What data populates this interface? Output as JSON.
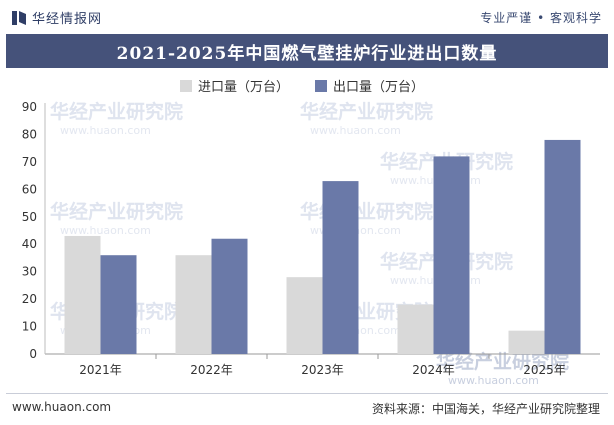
{
  "header": {
    "brand": "华经情报网",
    "slogan": "专业严谨 • 客观科学"
  },
  "title": "2021-2025年中国燃气壁挂炉行业进出口数量",
  "watermark": {
    "text": "华经产业研究院",
    "url": "www.huaon.com"
  },
  "footer": {
    "left": "www.huaon.com",
    "right": "资料来源：中国海关，华经产业研究院整理"
  },
  "colors": {
    "import": "#d9d9d9",
    "export": "#6a79a8",
    "title_bg": "#45527a",
    "brand": "#2f3e66"
  },
  "chart_data": {
    "type": "bar",
    "categories": [
      "2021年",
      "2022年",
      "2023年",
      "2024年",
      "2025年"
    ],
    "series": [
      {
        "name": "进口量（万台）",
        "values": [
          43,
          36,
          28,
          18,
          8.5
        ]
      },
      {
        "name": "出口量（万台）",
        "values": [
          36,
          42,
          63,
          72,
          78
        ]
      }
    ],
    "ylim": [
      0,
      90
    ],
    "yticks": [
      0,
      10,
      20,
      30,
      40,
      50,
      60,
      70,
      80,
      90
    ],
    "grid": false,
    "legend": "top-center"
  }
}
